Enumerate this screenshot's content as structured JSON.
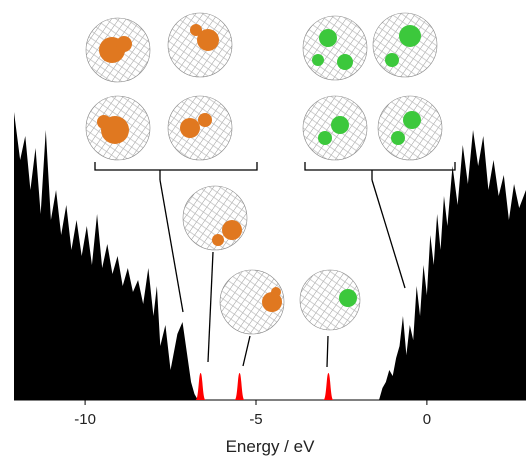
{
  "chart_data": {
    "type": "area",
    "xlabel": "Energy / eV",
    "xlim": [
      -12.08,
      2.9
    ],
    "ylim": [
      0,
      100
    ],
    "xticks": [
      -10,
      -5,
      0
    ],
    "series": [
      {
        "color": "#000000",
        "x": [
          -12.08,
          -11.9,
          -11.75,
          -11.6,
          -11.45,
          -11.3,
          -11.15,
          -11.0,
          -10.85,
          -10.7,
          -10.55,
          -10.4,
          -10.25,
          -10.1,
          -9.95,
          -9.8,
          -9.65,
          -9.5,
          -9.35,
          -9.2,
          -9.05,
          -8.9,
          -8.75,
          -8.6,
          -8.45,
          -8.3,
          -8.15,
          -8.0,
          -7.9,
          -7.8,
          -7.65,
          -7.5,
          -7.4,
          -7.3,
          -7.15,
          -7.0,
          -6.9,
          -6.8,
          -6.7,
          -4.0,
          -1.4,
          -1.3,
          -1.2,
          -1.1,
          -1.0,
          -0.9,
          -0.8,
          -0.7,
          -0.6,
          -0.5,
          -0.4,
          -0.3,
          -0.2,
          -0.1,
          0,
          0.1,
          0.2,
          0.3,
          0.4,
          0.5,
          0.6,
          0.75,
          0.9,
          1.05,
          1.2,
          1.35,
          1.5,
          1.65,
          1.8,
          1.95,
          2.1,
          2.25,
          2.4,
          2.55,
          2.7,
          2.9
        ],
        "values": [
          96,
          80,
          88,
          70,
          84,
          62,
          90,
          60,
          70,
          55,
          65,
          50,
          60,
          48,
          58,
          45,
          62,
          44,
          52,
          42,
          48,
          38,
          44,
          36,
          40,
          32,
          44,
          28,
          38,
          18,
          25,
          10,
          16,
          22,
          26,
          14,
          6,
          2,
          0,
          null,
          0,
          4,
          6,
          10,
          8,
          14,
          18,
          28,
          15,
          25,
          20,
          38,
          28,
          45,
          35,
          55,
          45,
          62,
          50,
          68,
          58,
          78,
          65,
          85,
          72,
          90,
          78,
          88,
          70,
          80,
          68,
          75,
          60,
          72,
          64,
          70
        ]
      },
      {
        "color": "#ff0000",
        "style": "peaks",
        "x": [
          -6.62,
          -5.48,
          -2.88
        ],
        "values": [
          9,
          9,
          9
        ]
      }
    ]
  }
}
